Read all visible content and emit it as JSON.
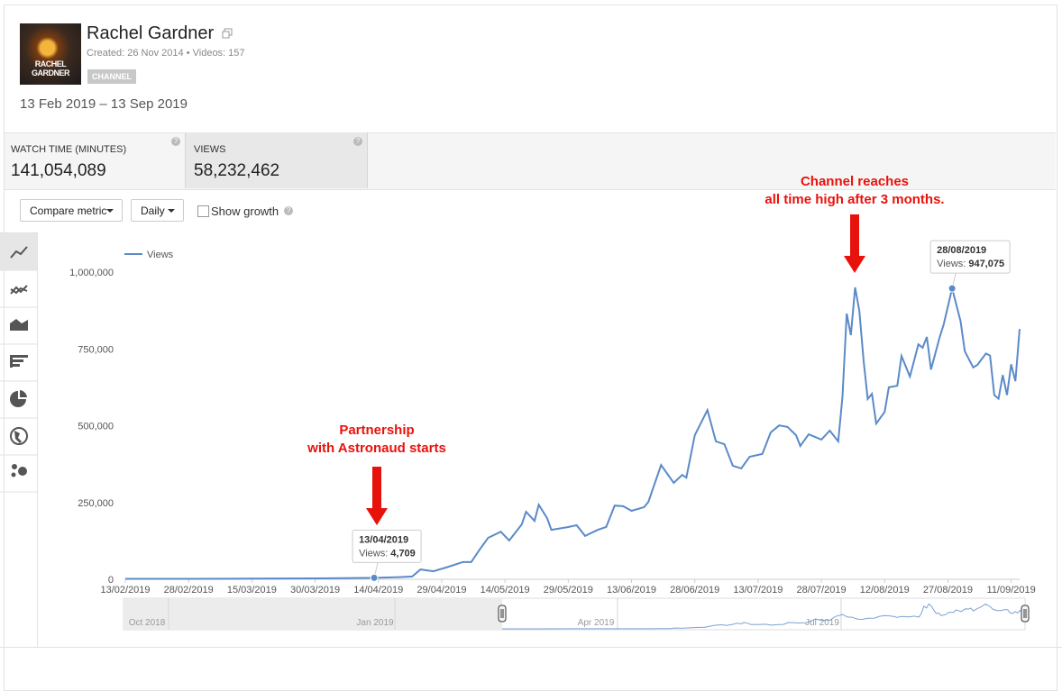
{
  "header": {
    "channel_name": "Rachel Gardner",
    "thumbnail_text": [
      "RACHEL",
      "GARDNER"
    ],
    "created": "Created: 26 Nov 2014",
    "separator": "•",
    "videos": "Videos: 157",
    "badge": "CHANNEL",
    "date_range": "13 Feb 2019 – 13 Sep 2019"
  },
  "metrics": [
    {
      "label": "WATCH TIME (MINUTES)",
      "value": "141,054,089"
    },
    {
      "label": "VIEWS",
      "value": "58,232,462"
    }
  ],
  "controls": {
    "compare": "Compare metric",
    "interval": "Daily",
    "growth": "Show growth"
  },
  "chart_data": {
    "type": "line",
    "xlim": [
      "13/02/2019",
      "13/09/2019"
    ],
    "xticks": [
      "13/02/2019",
      "28/02/2019",
      "15/03/2019",
      "30/03/2019",
      "14/04/2019",
      "29/04/2019",
      "14/05/2019",
      "29/05/2019",
      "13/06/2019",
      "28/06/2019",
      "13/07/2019",
      "28/07/2019",
      "12/08/2019",
      "27/08/2019",
      "11/09/2019"
    ],
    "ylim": [
      0,
      1100000
    ],
    "yticks": [
      0,
      {
        "value": 250000,
        "label": "250,000"
      },
      {
        "value": 500000,
        "label": "500,000"
      },
      {
        "value": 750000,
        "label": "750,000"
      },
      {
        "value": 1000000,
        "label": "1,000,000"
      }
    ],
    "grid": false,
    "series": [
      {
        "name": "Views",
        "color": "#5b8ac8",
        "x": [
          "13/02/2019",
          "01/03/2019",
          "15/03/2019",
          "30/03/2019",
          "13/04/2019",
          "19/04/2019",
          "22/04/2019",
          "24/04/2019",
          "27/04/2019",
          "30/04/2019",
          "04/05/2019",
          "06/05/2019",
          "08/05/2019",
          "10/05/2019",
          "13/05/2019",
          "15/05/2019",
          "18/05/2019",
          "19/05/2019",
          "21/05/2019",
          "22/05/2019",
          "24/05/2019",
          "25/05/2019",
          "29/05/2019",
          "31/05/2019",
          "02/06/2019",
          "05/06/2019",
          "07/06/2019",
          "09/06/2019",
          "11/06/2019",
          "13/06/2019",
          "16/06/2019",
          "17/06/2019",
          "20/06/2019",
          "23/06/2019",
          "25/06/2019",
          "26/06/2019",
          "28/06/2019",
          "01/07/2019",
          "03/07/2019",
          "05/07/2019",
          "07/07/2019",
          "09/07/2019",
          "11/07/2019",
          "14/07/2019",
          "16/07/2019",
          "18/07/2019",
          "20/07/2019",
          "22/07/2019",
          "23/07/2019",
          "25/07/2019",
          "28/07/2019",
          "30/07/2019",
          "01/08/2019",
          "02/08/2019",
          "03/08/2019",
          "04/08/2019",
          "05/08/2019",
          "06/08/2019",
          "07/08/2019",
          "08/08/2019",
          "09/08/2019",
          "10/08/2019",
          "12/08/2019",
          "13/08/2019",
          "15/08/2019",
          "16/08/2019",
          "18/08/2019",
          "20/08/2019",
          "21/08/2019",
          "22/08/2019",
          "23/08/2019",
          "25/08/2019",
          "26/08/2019",
          "28/08/2019",
          "30/08/2019",
          "31/08/2019",
          "02/09/2019",
          "03/09/2019",
          "05/09/2019",
          "06/09/2019",
          "07/09/2019",
          "08/09/2019",
          "09/09/2019",
          "10/09/2019",
          "11/09/2019",
          "12/09/2019",
          "13/09/2019"
        ],
        "values": [
          1500,
          1500,
          2000,
          3000,
          4709,
          7000,
          9000,
          32000,
          26000,
          38000,
          56000,
          56000,
          97000,
          135000,
          155000,
          126000,
          179000,
          220000,
          190000,
          243000,
          199000,
          161000,
          170000,
          176000,
          141000,
          161000,
          170000,
          240000,
          238000,
          223000,
          235000,
          252000,
          372000,
          314000,
          340000,
          331000,
          469000,
          551000,
          449000,
          440000,
          370000,
          361000,
          399000,
          408000,
          478000,
          501000,
          496000,
          469000,
          434000,
          472000,
          455000,
          484000,
          449000,
          595000,
          865000,
          795000,
          950000,
          874000,
          713000,
          587000,
          604000,
          507000,
          545000,
          625000,
          630000,
          727000,
          660000,
          765000,
          754000,
          789000,
          683000,
          786000,
          830000,
          947075,
          840000,
          742000,
          690000,
          698000,
          735000,
          728000,
          600000,
          588000,
          665000,
          600000,
          700000,
          645000,
          815000
        ]
      }
    ],
    "tooltips": [
      {
        "date": "13/04/2019",
        "label": "Views:",
        "value": {
          "value": 4709,
          "label": "4,709"
        }
      },
      {
        "date": "28/08/2019",
        "label": "Views:",
        "value": {
          "value": 947075,
          "label": "947,075"
        }
      }
    ],
    "annotations": [
      {
        "lines": [
          "Partnership",
          "with Astronaud starts"
        ]
      },
      {
        "lines": [
          "Channel reaches",
          "all time high after 3 months."
        ]
      }
    ],
    "navigator": {
      "labels": [
        "Oct 2018",
        "Jan 2019",
        "Apr 2019",
        "Jul 2019"
      ]
    }
  }
}
